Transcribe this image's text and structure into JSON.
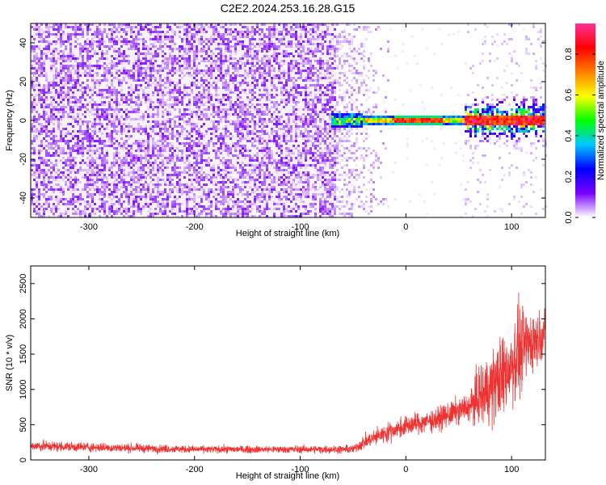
{
  "title": "C2E2.2024.253.16.28.G15",
  "chart_data": [
    {
      "type": "heatmap",
      "xlabel": "Height of straight line (km)",
      "ylabel": "Frequency (Hz)",
      "xlim": [
        -355,
        132
      ],
      "ylim": [
        -50,
        50
      ],
      "x_ticks": [
        -300,
        -200,
        -100,
        0,
        100
      ],
      "x_tick_labels": [
        "-300",
        "-200",
        "-100",
        "0",
        "100"
      ],
      "y_ticks": [
        -40,
        -20,
        0,
        20,
        40
      ],
      "y_tick_labels": [
        "-40",
        "-20",
        "0",
        "20",
        "40"
      ],
      "colorbar": {
        "label": "Normalized spectral amplitude",
        "range": [
          0,
          0.95
        ],
        "ticks": [
          0,
          0.2,
          0.4,
          0.6,
          0.8
        ],
        "tick_labels": [
          "0.0",
          "0.2",
          "0.4",
          "0.6",
          "0.8"
        ],
        "colormap": [
          "#ffffff",
          "#7a00ff",
          "#0000ff",
          "#00c8ff",
          "#00ff00",
          "#ffff00",
          "#ff8000",
          "#ff0000",
          "#ff3399"
        ]
      },
      "regions": [
        {
          "x_range": [
            -355,
            -65
          ],
          "f_range": [
            -50,
            50
          ],
          "amplitude": "low, broadband noise (~0.05-0.1)"
        },
        {
          "x_range": [
            -65,
            -15
          ],
          "f_range": [
            -50,
            50
          ],
          "amplitude": "sparse, fading noise (~0.02)"
        },
        {
          "x_range": [
            -70,
            55
          ],
          "f_range": [
            -3,
            3
          ],
          "amplitude": "carrier line, peak ~0.95 near 0-30 km"
        },
        {
          "x_range": [
            55,
            132
          ],
          "f_range": [
            -15,
            15
          ],
          "amplitude": "scattered 0.2-0.8 around carrier"
        }
      ]
    },
    {
      "type": "line",
      "xlabel": "Height of straight line (km)",
      "ylabel": "SNR (10 * v/v)",
      "xlim": [
        -355,
        132
      ],
      "ylim": [
        0,
        2750
      ],
      "x_ticks": [
        -300,
        -200,
        -100,
        0,
        100
      ],
      "x_tick_labels": [
        "-300",
        "-200",
        "-100",
        "0",
        "100"
      ],
      "y_ticks": [
        0,
        500,
        1000,
        1500,
        2000,
        2500
      ],
      "y_tick_labels": [
        "0",
        "500",
        "1000",
        "1500",
        "2000",
        "2500"
      ],
      "color": "#ee3333",
      "envelope": [
        {
          "x": -355,
          "mean": 200,
          "spread": 120
        },
        {
          "x": -300,
          "mean": 180,
          "spread": 100
        },
        {
          "x": -200,
          "mean": 150,
          "spread": 80
        },
        {
          "x": -100,
          "mean": 150,
          "spread": 80
        },
        {
          "x": -50,
          "mean": 150,
          "spread": 90
        },
        {
          "x": -40,
          "mean": 250,
          "spread": 150
        },
        {
          "x": -20,
          "mean": 380,
          "spread": 200
        },
        {
          "x": 0,
          "mean": 480,
          "spread": 220
        },
        {
          "x": 30,
          "mean": 580,
          "spread": 250
        },
        {
          "x": 60,
          "mean": 750,
          "spread": 300
        },
        {
          "x": 70,
          "mean": 900,
          "spread": 700
        },
        {
          "x": 90,
          "mean": 1150,
          "spread": 900
        },
        {
          "x": 105,
          "mean": 1500,
          "spread": 1000
        },
        {
          "x": 120,
          "mean": 1700,
          "spread": 700
        },
        {
          "x": 132,
          "mean": 1800,
          "spread": 400
        }
      ]
    }
  ]
}
